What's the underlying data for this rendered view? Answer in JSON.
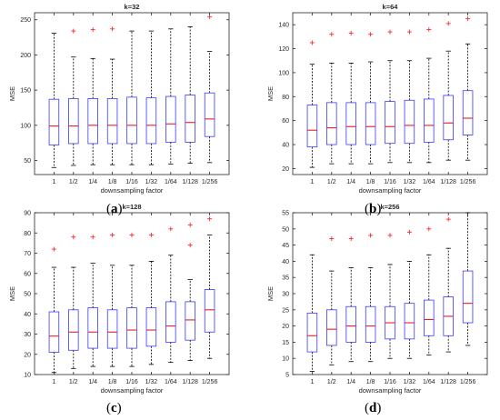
{
  "style": {
    "box_color": "#3a3aff",
    "median_color": "#e8201f",
    "outlier_color": "#ff2a2a",
    "whisker_color": "#000000",
    "axis_color": "#262626",
    "text_color": "#262626"
  },
  "chart_data": [
    {
      "type": "box",
      "title": "k=32",
      "xlabel": "downsampling factor",
      "ylabel": "MSE",
      "caption": "a",
      "categories": [
        "1",
        "1/2",
        "1/4",
        "1/8",
        "1/16",
        "1/32",
        "1/64",
        "1/128",
        "1/256"
      ],
      "ylim": [
        30,
        260
      ],
      "yticks": [
        50,
        100,
        150,
        200,
        250
      ],
      "boxes": [
        {
          "whislo": 40,
          "q1": 72,
          "med": 99,
          "q3": 137,
          "whishi": 231,
          "fliers": []
        },
        {
          "whislo": 43,
          "q1": 74,
          "med": 99,
          "q3": 138,
          "whishi": 197,
          "fliers": [
            234
          ]
        },
        {
          "whislo": 44,
          "q1": 74,
          "med": 100,
          "q3": 138,
          "whishi": 195,
          "fliers": [
            236
          ]
        },
        {
          "whislo": 44,
          "q1": 74,
          "med": 100,
          "q3": 138,
          "whishi": 194,
          "fliers": [
            237
          ]
        },
        {
          "whislo": 44,
          "q1": 74,
          "med": 100,
          "q3": 140,
          "whishi": 234,
          "fliers": []
        },
        {
          "whislo": 44,
          "q1": 74,
          "med": 100,
          "q3": 139,
          "whishi": 234,
          "fliers": []
        },
        {
          "whislo": 45,
          "q1": 76,
          "med": 102,
          "q3": 141,
          "whishi": 237,
          "fliers": []
        },
        {
          "whislo": 46,
          "q1": 76,
          "med": 104,
          "q3": 143,
          "whishi": 240,
          "fliers": []
        },
        {
          "whislo": 47,
          "q1": 84,
          "med": 109,
          "q3": 146,
          "whishi": 205,
          "fliers": [
            254
          ]
        }
      ]
    },
    {
      "type": "box",
      "title": "k=64",
      "xlabel": "downsampling factor",
      "ylabel": "MSE",
      "caption": "b",
      "categories": [
        "1",
        "1/2",
        "1/4",
        "1/8",
        "1/16",
        "1/32",
        "1/64",
        "1/128",
        "1/256"
      ],
      "ylim": [
        15,
        150
      ],
      "yticks": [
        20,
        40,
        60,
        80,
        100,
        120,
        140
      ],
      "boxes": [
        {
          "whislo": 21,
          "q1": 38,
          "med": 52,
          "q3": 73,
          "whishi": 107,
          "fliers": [
            125
          ]
        },
        {
          "whislo": 24,
          "q1": 40,
          "med": 54,
          "q3": 75,
          "whishi": 108,
          "fliers": [
            132
          ]
        },
        {
          "whislo": 24,
          "q1": 40,
          "med": 55,
          "q3": 75,
          "whishi": 108,
          "fliers": [
            133
          ]
        },
        {
          "whislo": 24,
          "q1": 40,
          "med": 55,
          "q3": 75,
          "whishi": 109,
          "fliers": [
            132
          ]
        },
        {
          "whislo": 25,
          "q1": 41,
          "med": 55,
          "q3": 76,
          "whishi": 110,
          "fliers": [
            134
          ]
        },
        {
          "whislo": 25,
          "q1": 41,
          "med": 56,
          "q3": 77,
          "whishi": 110,
          "fliers": [
            134
          ]
        },
        {
          "whislo": 25,
          "q1": 42,
          "med": 56,
          "q3": 78,
          "whishi": 112,
          "fliers": [
            136
          ]
        },
        {
          "whislo": 27,
          "q1": 44,
          "med": 58,
          "q3": 81,
          "whishi": 118,
          "fliers": [
            141
          ]
        },
        {
          "whislo": 27,
          "q1": 48,
          "med": 62,
          "q3": 85,
          "whishi": 124,
          "fliers": [
            145
          ]
        }
      ]
    },
    {
      "type": "box",
      "title": "k=128",
      "xlabel": "downsampling factor",
      "ylabel": "MSE",
      "caption": "c",
      "categories": [
        "1",
        "1/2",
        "1/4",
        "1/8",
        "1/16",
        "1/32",
        "1/64",
        "1/128",
        "1/256"
      ],
      "ylim": [
        10,
        90
      ],
      "yticks": [
        10,
        20,
        30,
        40,
        50,
        60,
        70,
        80,
        90
      ],
      "boxes": [
        {
          "whislo": 11,
          "q1": 21,
          "med": 29,
          "q3": 41,
          "whishi": 63,
          "fliers": [
            72
          ]
        },
        {
          "whislo": 13,
          "q1": 22,
          "med": 31,
          "q3": 42,
          "whishi": 63,
          "fliers": [
            78
          ]
        },
        {
          "whislo": 14,
          "q1": 23,
          "med": 31,
          "q3": 43,
          "whishi": 65,
          "fliers": [
            78
          ]
        },
        {
          "whislo": 14,
          "q1": 23,
          "med": 31,
          "q3": 42,
          "whishi": 64,
          "fliers": [
            79
          ]
        },
        {
          "whislo": 14,
          "q1": 23,
          "med": 32,
          "q3": 43,
          "whishi": 64,
          "fliers": [
            79
          ]
        },
        {
          "whislo": 15,
          "q1": 24,
          "med": 32,
          "q3": 43,
          "whishi": 66,
          "fliers": [
            79
          ]
        },
        {
          "whislo": 16,
          "q1": 26,
          "med": 34,
          "q3": 46,
          "whishi": 69,
          "fliers": [
            82
          ]
        },
        {
          "whislo": 17,
          "q1": 27,
          "med": 37,
          "q3": 46,
          "whishi": 57,
          "fliers": [
            74,
            84
          ]
        },
        {
          "whislo": 18,
          "q1": 31,
          "med": 42,
          "q3": 52,
          "whishi": 79,
          "fliers": [
            87
          ]
        }
      ]
    },
    {
      "type": "box",
      "title": "k=256",
      "xlabel": "downsampling factor",
      "ylabel": "MSE",
      "caption": "d",
      "categories": [
        "1",
        "1/2",
        "1/4",
        "1/8",
        "1/16",
        "1/32",
        "1/64",
        "1/128",
        "1/256"
      ],
      "ylim": [
        5,
        55
      ],
      "yticks": [
        5,
        10,
        15,
        20,
        25,
        30,
        35,
        40,
        45,
        50,
        55
      ],
      "boxes": [
        {
          "whislo": 6,
          "q1": 12,
          "med": 17,
          "q3": 24,
          "whishi": 42,
          "fliers": []
        },
        {
          "whislo": 8,
          "q1": 14,
          "med": 19,
          "q3": 25,
          "whishi": 37,
          "fliers": [
            47
          ]
        },
        {
          "whislo": 9,
          "q1": 15,
          "med": 20,
          "q3": 26,
          "whishi": 38,
          "fliers": [
            47
          ]
        },
        {
          "whislo": 9,
          "q1": 15,
          "med": 20,
          "q3": 26,
          "whishi": 38,
          "fliers": [
            48
          ]
        },
        {
          "whislo": 10,
          "q1": 16,
          "med": 21,
          "q3": 26,
          "whishi": 39,
          "fliers": [
            48
          ]
        },
        {
          "whislo": 10,
          "q1": 16,
          "med": 21,
          "q3": 27,
          "whishi": 40,
          "fliers": [
            49
          ]
        },
        {
          "whislo": 11,
          "q1": 17,
          "med": 22,
          "q3": 28,
          "whishi": 42,
          "fliers": [
            50
          ]
        },
        {
          "whislo": 12,
          "q1": 17,
          "med": 23,
          "q3": 29,
          "whishi": 44,
          "fliers": [
            53
          ]
        },
        {
          "whislo": 14,
          "q1": 21,
          "med": 27,
          "q3": 37,
          "whishi": 55,
          "fliers": []
        }
      ]
    }
  ]
}
